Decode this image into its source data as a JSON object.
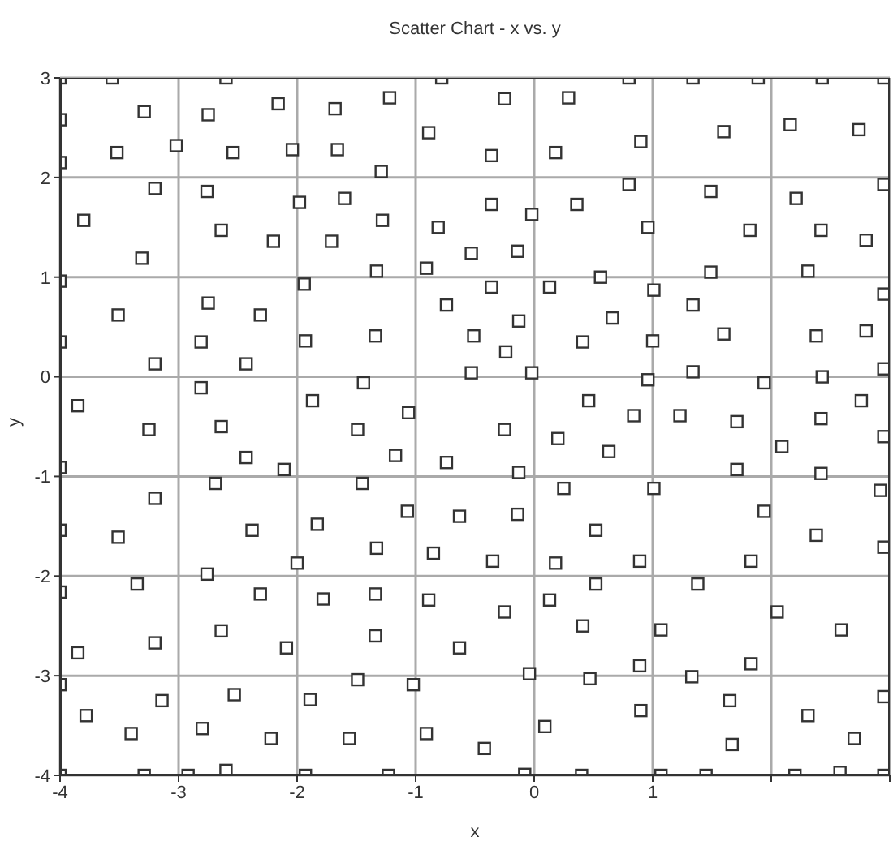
{
  "chart_data": {
    "type": "scatter",
    "title": "Scatter Chart - x vs. y",
    "xlabel": "x",
    "ylabel": "y",
    "xlim": [
      -4,
      3
    ],
    "xticks": [
      -4,
      -3,
      -2,
      -1,
      0,
      1,
      {
        "value": 2,
        "label": null
      },
      {
        "value": 3,
        "label": null
      }
    ],
    "ylim": [
      -4,
      3
    ],
    "yticks": [
      -4,
      -3,
      -2,
      -1,
      0,
      1,
      2,
      3
    ],
    "grid": true,
    "marker": "square",
    "series": [
      {
        "color": "#333333",
        "x": [
          -4,
          -3.56,
          -2.6,
          -4,
          -3.29,
          -2.75,
          -2.16,
          -1.68,
          -4,
          -3.52,
          -3.02,
          -2.54,
          -2.04,
          -1.66,
          -3.2,
          -2.76,
          -1.98,
          -3.8,
          -2.64,
          -2.2,
          -1.71,
          -3.31,
          -4,
          -1.94,
          -3.51,
          -2.75,
          -2.31,
          -4,
          -1.93,
          -2.81,
          -3.2,
          -2.43,
          -2.81,
          -1.87,
          -3.85,
          -3.25,
          -2.64,
          -0.78,
          -1.22,
          -0.25,
          0.29,
          -0.89,
          -0.36,
          0.18,
          -1.29,
          -1.6,
          -0.36,
          -0.02,
          0.36,
          -1.28,
          -0.81,
          -0.53,
          -0.14,
          -1.33,
          -0.91,
          -0.36,
          0.13,
          0.56,
          -0.74,
          -0.13,
          0.66,
          -1.34,
          -0.51,
          0.41,
          -0.24,
          -1.44,
          -0.53,
          -0.02,
          0.46,
          -1.06,
          -1.49,
          -0.25,
          0.8,
          1.34,
          1.89,
          2.43,
          2.95,
          0.9,
          1.6,
          2.16,
          2.74,
          0.8,
          1.49,
          2.21,
          2.95,
          0.96,
          1.82,
          2.42,
          2.8,
          1.49,
          2.31,
          1.01,
          2.95,
          1.34,
          1,
          1.6,
          2.38,
          2.8,
          0.96,
          1.34,
          1.94,
          2.43,
          2.95,
          0.84,
          1.23,
          1.71,
          2.42,
          2.76,
          -2.43,
          -2.11,
          -4,
          -2.69,
          -3.2,
          -4,
          -3.51,
          -2.38,
          -1.83,
          -2,
          -3.35,
          -2.76,
          -4,
          -2.31,
          -1.78,
          -2.64,
          -3.85,
          -3.2,
          -2.09,
          -4,
          -2.53,
          -3.14,
          -1.89,
          -3.78,
          -3.4,
          -2.8,
          -2.22,
          -4,
          -3.29,
          -2.92,
          -2.6,
          -1.93,
          0.2,
          0.63,
          -1.17,
          -0.74,
          -0.13,
          -1.45,
          0.25,
          -1.07,
          -0.63,
          -0.14,
          0.52,
          -1.33,
          -0.85,
          -0.35,
          0.18,
          -1.34,
          -0.89,
          -0.25,
          0.13,
          0.52,
          -1.34,
          -0.63,
          0.41,
          -1.49,
          -1.02,
          -0.04,
          0.47,
          -1.56,
          -0.91,
          -0.42,
          0.09,
          -1.23,
          -0.08,
          0.4,
          2.95,
          2.09,
          1.71,
          2.42,
          1.01,
          2.92,
          1.94,
          2.38,
          2.95,
          0.89,
          1.83,
          1.38,
          2.05,
          1.07,
          2.59,
          0.89,
          1.83,
          1.33,
          2.95,
          1.65,
          2.31,
          0.9,
          2.7,
          1.67,
          1.07,
          1.45,
          2.2,
          2.58,
          2.95
        ],
        "values": [
          3,
          3,
          3,
          2.58,
          2.66,
          2.63,
          2.74,
          2.69,
          2.15,
          2.25,
          2.32,
          2.25,
          2.28,
          2.28,
          1.89,
          1.86,
          1.75,
          1.57,
          1.47,
          1.36,
          1.36,
          1.19,
          0.96,
          0.93,
          0.62,
          0.74,
          0.62,
          0.35,
          0.36,
          0.35,
          0.13,
          0.13,
          -0.11,
          -0.24,
          -0.29,
          -0.53,
          -0.5,
          3,
          2.8,
          2.79,
          2.8,
          2.45,
          2.22,
          2.25,
          2.06,
          1.79,
          1.73,
          1.63,
          1.73,
          1.57,
          1.5,
          1.24,
          1.26,
          1.06,
          1.09,
          0.9,
          0.9,
          1,
          0.72,
          0.56,
          0.59,
          0.41,
          0.41,
          0.35,
          0.25,
          -0.06,
          0.04,
          0.04,
          -0.24,
          -0.36,
          -0.53,
          -0.53,
          3,
          3,
          3,
          3,
          3,
          2.36,
          2.46,
          2.53,
          2.48,
          1.93,
          1.86,
          1.79,
          1.93,
          1.5,
          1.47,
          1.47,
          1.37,
          1.05,
          1.06,
          0.87,
          0.83,
          0.72,
          0.36,
          0.43,
          0.41,
          0.46,
          -0.03,
          0.05,
          -0.06,
          0,
          0.08,
          -0.39,
          -0.39,
          -0.45,
          -0.42,
          -0.24,
          -0.81,
          -0.93,
          -0.91,
          -1.07,
          -1.22,
          -1.54,
          -1.61,
          -1.54,
          -1.48,
          -1.87,
          -2.08,
          -1.98,
          -2.16,
          -2.18,
          -2.23,
          -2.55,
          -2.77,
          -2.67,
          -2.72,
          -3.09,
          -3.19,
          -3.25,
          -3.24,
          -3.4,
          -3.58,
          -3.53,
          -3.63,
          -4,
          -4,
          -4,
          -3.95,
          -4,
          -0.62,
          -0.75,
          -0.79,
          -0.86,
          -0.96,
          -1.07,
          -1.12,
          -1.35,
          -1.4,
          -1.38,
          -1.54,
          -1.72,
          -1.77,
          -1.85,
          -1.87,
          -2.18,
          -2.24,
          -2.36,
          -2.24,
          -2.08,
          -2.6,
          -2.72,
          -2.5,
          -3.04,
          -3.09,
          -2.98,
          -3.03,
          -3.63,
          -3.58,
          -3.73,
          -3.51,
          -4,
          -3.99,
          -4,
          -0.6,
          -0.7,
          -0.93,
          -0.97,
          -1.12,
          -1.14,
          -1.35,
          -1.59,
          -1.71,
          -1.85,
          -1.85,
          -2.08,
          -2.36,
          -2.54,
          -2.54,
          -2.9,
          -2.88,
          -3.01,
          -3.21,
          -3.25,
          -3.4,
          -3.35,
          -3.63,
          -3.69,
          -4,
          -4,
          -4,
          -3.97,
          -4
        ]
      }
    ]
  }
}
